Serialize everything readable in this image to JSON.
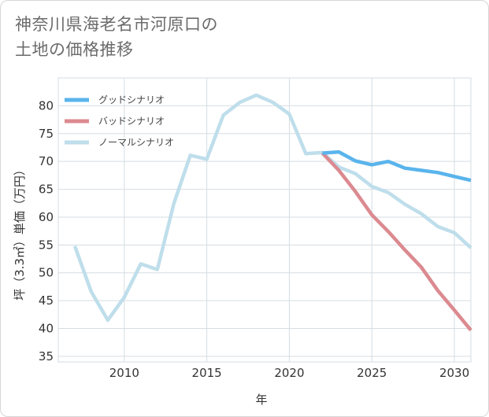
{
  "title": {
    "line1": "神奈川県海老名市河原口の",
    "line2": "土地の価格推移"
  },
  "chart_data": {
    "type": "line",
    "title": "神奈川県海老名市河原口の土地の価格推移",
    "xlabel": "年",
    "ylabel": "坪（3.3㎡）単価（万円）",
    "xlim": [
      2006,
      2031
    ],
    "ylim": [
      34,
      85
    ],
    "xticks": [
      2010,
      2015,
      2020,
      2025,
      2030
    ],
    "yticks": [
      35,
      40,
      45,
      50,
      55,
      60,
      65,
      70,
      75,
      80
    ],
    "grid": true,
    "legend_position": "top-left",
    "series": [
      {
        "name": "グッドシナリオ",
        "color": "#5ab4ec",
        "x": [
          2022,
          2023,
          2024,
          2025,
          2026,
          2027,
          2028,
          2029,
          2030,
          2031
        ],
        "y": [
          71.5,
          71.7,
          70.1,
          69.4,
          70.0,
          68.8,
          68.4,
          68.0,
          67.3,
          66.6
        ]
      },
      {
        "name": "バッドシナリオ",
        "color": "#db8a90",
        "x": [
          2022,
          2023,
          2024,
          2025,
          2026,
          2027,
          2028,
          2029,
          2030,
          2031
        ],
        "y": [
          71.5,
          68.4,
          64.6,
          60.4,
          57.4,
          54.1,
          51.0,
          46.8,
          43.3,
          39.7
        ]
      },
      {
        "name": "ノーマルシナリオ",
        "color": "#bfdeeb",
        "x": [
          2007,
          2008,
          2009,
          2010,
          2011,
          2012,
          2013,
          2014,
          2015,
          2016,
          2017,
          2018,
          2019,
          2020,
          2021,
          2022,
          2023,
          2024,
          2025,
          2026,
          2027,
          2028,
          2029,
          2030,
          2031
        ],
        "y": [
          54.8,
          46.6,
          41.5,
          45.6,
          51.6,
          50.6,
          62.4,
          71.1,
          70.4,
          78.3,
          80.6,
          81.9,
          80.6,
          78.5,
          71.4,
          71.6,
          69.0,
          67.8,
          65.5,
          64.4,
          62.3,
          60.6,
          58.3,
          57.2,
          54.5
        ]
      }
    ]
  }
}
